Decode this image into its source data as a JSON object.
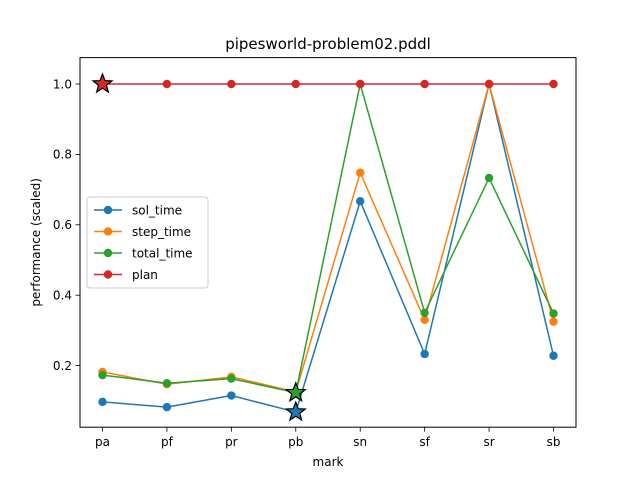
{
  "chart_data": {
    "type": "line",
    "title": "pipesworld-problem02.pddl",
    "xlabel": "mark",
    "ylabel": "performance (scaled)",
    "categories": [
      "pa",
      "pf",
      "pr",
      "pb",
      "sn",
      "sf",
      "sr",
      "sb"
    ],
    "ylim": [
      0.025,
      1.075
    ],
    "yticks": [
      0.2,
      0.4,
      0.6,
      0.8,
      1.0
    ],
    "ytick_labels": [
      "0.2",
      "0.4",
      "0.6",
      "0.8",
      "1.0"
    ],
    "grid": false,
    "legend_position": "center-left",
    "series": [
      {
        "name": "sol_time",
        "color": "#1f77b4",
        "values": [
          0.097,
          0.082,
          0.115,
          0.068,
          0.667,
          0.233,
          1.0,
          0.228
        ]
      },
      {
        "name": "step_time",
        "color": "#ff7f0e",
        "values": [
          0.182,
          0.147,
          0.168,
          0.125,
          0.748,
          0.33,
          1.0,
          0.325
        ]
      },
      {
        "name": "total_time",
        "color": "#2ca02c",
        "values": [
          0.173,
          0.15,
          0.163,
          0.123,
          1.0,
          0.35,
          0.733,
          0.348
        ]
      },
      {
        "name": "plan",
        "color": "#d62728",
        "values": [
          1.0,
          1.0,
          1.0,
          1.0,
          1.0,
          1.0,
          1.0,
          1.0
        ]
      }
    ],
    "star_markers": [
      {
        "series": "plan",
        "category": "pa",
        "value": 1.0
      },
      {
        "series": "sol_time",
        "category": "pb",
        "value": 0.068
      },
      {
        "series": "total_time",
        "category": "pb",
        "value": 0.123
      }
    ]
  }
}
